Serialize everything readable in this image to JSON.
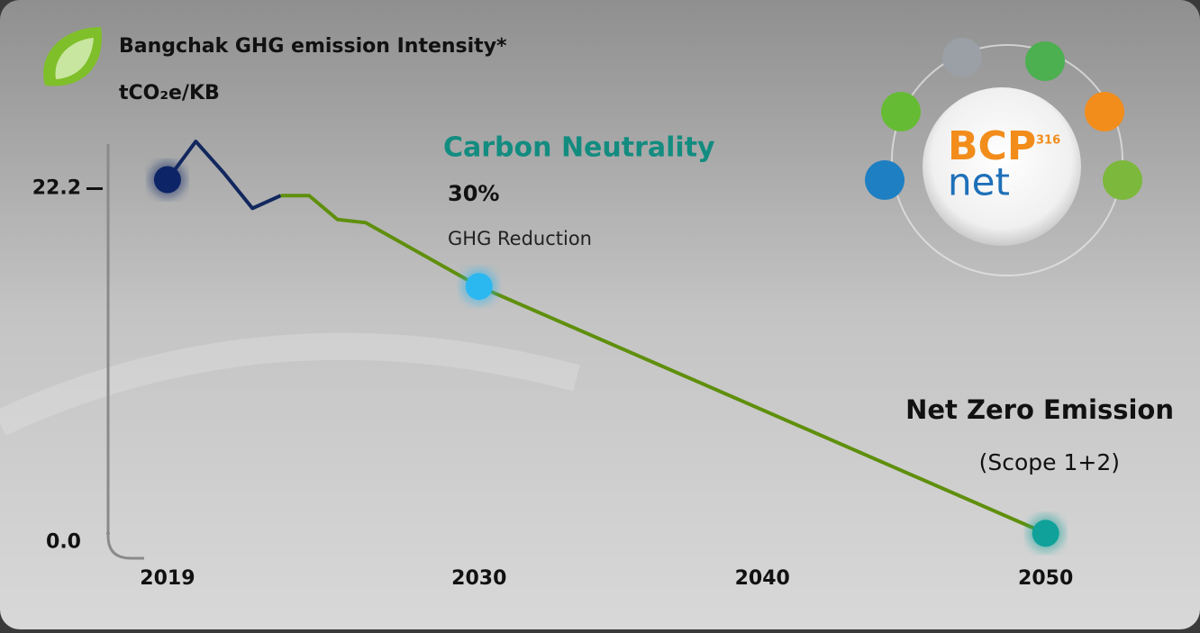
{
  "chart_data": {
    "type": "line",
    "title": "Bangchak GHG emission Intensity*",
    "y_label": "tCO₂e/KB",
    "x": [
      2019,
      2020,
      2021,
      2022,
      2023,
      2024,
      2025,
      2026,
      2030,
      2050
    ],
    "series": [
      {
        "color": "#12275e",
        "values": [
          22.2,
          24.6,
          22.6,
          20.4,
          21.2,
          null,
          null,
          null,
          null,
          null
        ],
        "marker_colors": [
          "#0d2566",
          null,
          null,
          null,
          null,
          null,
          null,
          null,
          null,
          null
        ]
      },
      {
        "color": "#5f8f0c",
        "values": [
          null,
          null,
          null,
          null,
          21.2,
          21.2,
          19.7,
          19.5,
          15.5,
          0
        ],
        "marker_colors": [
          null,
          null,
          null,
          null,
          null,
          null,
          null,
          null,
          "#2bb7f0",
          "#10a19a"
        ]
      }
    ],
    "xlim": [
      2017,
      2053
    ],
    "xticks": [
      2019,
      2030,
      2040,
      2050
    ],
    "ylim": [
      -1,
      25
    ],
    "yticks": [
      22.2,
      {
        "value": 0,
        "label": "0.0"
      }
    ],
    "annotations": {
      "carbon_neutrality": "Carbon Neutrality",
      "reduction_pct": "30%",
      "reduction_label": "GHG Reduction",
      "net_zero": "Net Zero Emission",
      "scope": "(Scope 1+2)"
    },
    "logo": {
      "brand": "BCP",
      "number": "316",
      "word": "net"
    }
  }
}
